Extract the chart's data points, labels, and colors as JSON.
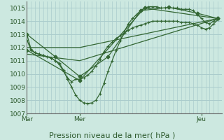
{
  "bg_color": "#cce8e0",
  "grid_color": "#aacccc",
  "line_color": "#336633",
  "marker_color": "#336633",
  "title": "Pression niveau de la mer( hPa )",
  "title_fontsize": 8,
  "ylim": [
    1007,
    1015.5
  ],
  "yticks": [
    1007,
    1008,
    1009,
    1010,
    1011,
    1012,
    1013,
    1014,
    1015
  ],
  "xlabel_mar": "Mar",
  "xlabel_mer": "Mer",
  "xlabel_jeu": "Jeu",
  "xlim": [
    0,
    48
  ],
  "xpos_mar": 0,
  "xpos_mer": 13,
  "xpos_jeu": 43,
  "series1_x": [
    0,
    1,
    2,
    3,
    4,
    5,
    6,
    7,
    8,
    9,
    10,
    11,
    12,
    13,
    14,
    15,
    16,
    17,
    18,
    19,
    20,
    21,
    22,
    23,
    24,
    25,
    26,
    27,
    28,
    29,
    30,
    31,
    32,
    33,
    34,
    35,
    36,
    37,
    38,
    39,
    40,
    41,
    42,
    43,
    44,
    45,
    46,
    47
  ],
  "series1_y": [
    1013.0,
    1011.9,
    1011.6,
    1011.5,
    1011.4,
    1011.3,
    1011.2,
    1011.0,
    1010.8,
    1010.3,
    1009.6,
    1009.0,
    1008.4,
    1008.0,
    1007.8,
    1007.75,
    1007.8,
    1008.0,
    1008.5,
    1009.3,
    1010.2,
    1011.0,
    1011.8,
    1012.5,
    1013.2,
    1013.8,
    1014.2,
    1014.5,
    1014.8,
    1015.0,
    1015.1,
    1015.1,
    1015.1,
    1015.0,
    1015.0,
    1015.0,
    1015.0,
    1015.0,
    1014.9,
    1014.9,
    1014.9,
    1014.8,
    1014.5,
    1014.2,
    1013.9,
    1013.8,
    1014.0,
    1014.2
  ],
  "series2_x": [
    0,
    1,
    2,
    3,
    4,
    5,
    6,
    7,
    8,
    9,
    10,
    11,
    12,
    13,
    14,
    15,
    16,
    17,
    18,
    19,
    20,
    21,
    22,
    23,
    24,
    25,
    26,
    27,
    28,
    29,
    30,
    31,
    32,
    33,
    34,
    35,
    36,
    37,
    38,
    39,
    40,
    41,
    42,
    43,
    44,
    45,
    46,
    47
  ],
  "series2_y": [
    1012.6,
    1011.8,
    1011.6,
    1011.5,
    1011.4,
    1011.3,
    1011.2,
    1011.0,
    1010.7,
    1010.2,
    1009.7,
    1009.4,
    1009.6,
    1009.6,
    1009.7,
    1009.9,
    1010.2,
    1010.6,
    1011.1,
    1011.7,
    1012.1,
    1012.4,
    1012.7,
    1012.9,
    1013.1,
    1013.3,
    1013.5,
    1013.6,
    1013.7,
    1013.8,
    1013.9,
    1014.0,
    1014.0,
    1014.0,
    1014.0,
    1014.0,
    1014.0,
    1014.0,
    1013.9,
    1013.9,
    1013.9,
    1013.8,
    1013.7,
    1013.5,
    1013.4,
    1013.5,
    1013.8,
    1014.1
  ],
  "series3_x": [
    0,
    13,
    47
  ],
  "series3_y": [
    1011.5,
    1011.0,
    1014.2
  ],
  "series4_x": [
    0,
    13,
    47
  ],
  "series4_y": [
    1012.0,
    1012.0,
    1014.2
  ],
  "series5_x": [
    0,
    13,
    29,
    47
  ],
  "series5_y": [
    1011.8,
    1009.5,
    1015.0,
    1014.2
  ],
  "series6_x": [
    0,
    7,
    13,
    20,
    28,
    35,
    42,
    47
  ],
  "series6_y": [
    1013.0,
    1011.3,
    1009.8,
    1011.3,
    1014.8,
    1015.05,
    1014.6,
    1014.2
  ]
}
